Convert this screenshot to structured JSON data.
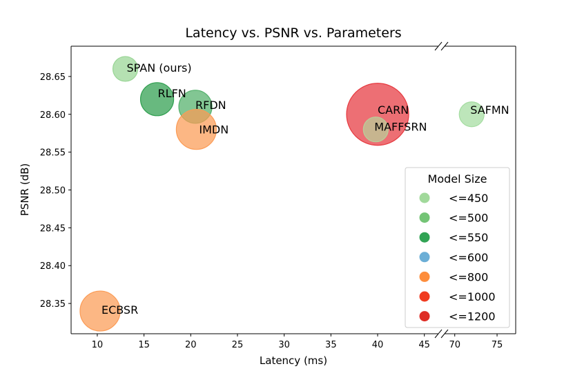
{
  "chart_data": {
    "type": "scatter",
    "title": "Latency vs. PSNR vs. Parameters",
    "xlabel": "Latency (ms)",
    "ylabel": "PSNR (dB)",
    "ylim": [
      28.31,
      28.69
    ],
    "x_left_range": [
      7.2,
      46.5
    ],
    "x_right_range": [
      68.8,
      77.2
    ],
    "x_left_ticks": [
      10,
      15,
      20,
      25,
      30,
      35,
      40,
      45
    ],
    "x_right_ticks": [
      70,
      75
    ],
    "y_ticks": [
      28.35,
      28.4,
      28.45,
      28.5,
      28.55,
      28.6,
      28.65
    ],
    "y_tick_labels": [
      "28.35",
      "28.40",
      "28.45",
      "28.50",
      "28.55",
      "28.60",
      "28.65"
    ],
    "points": [
      {
        "name": "SPAN (ours)",
        "latency": 13.0,
        "psnr": 28.66,
        "size_class": "<=450",
        "color": "#98d594",
        "label_dx": 2,
        "label_dy": -2
      },
      {
        "name": "RLFN",
        "latency": 16.4,
        "psnr": 28.62,
        "size_class": "<=550",
        "color": "#2e9e4e",
        "label_dx": 1,
        "label_dy": -9
      },
      {
        "name": "RFDN",
        "latency": 20.5,
        "psnr": 28.61,
        "size_class": "<=500",
        "color": "#52b06a",
        "label_dx": 0,
        "label_dy": -3
      },
      {
        "name": "IMDN",
        "latency": 20.6,
        "psnr": 28.58,
        "size_class": "<=800",
        "color": "#fb9b55",
        "label_dx": 4,
        "label_dy": 0
      },
      {
        "name": "CARN",
        "latency": 40.0,
        "psnr": 28.6,
        "size_class": "<=1200",
        "color": "#e6383e",
        "label_dx": 0,
        "label_dy": -7
      },
      {
        "name": "MAFFSRN",
        "latency": 39.8,
        "psnr": 28.58,
        "size_class": "<=450",
        "color": "#b8d09a",
        "label_dx": -2,
        "label_dy": -4
      },
      {
        "name": "SAFMN",
        "latency": 72.0,
        "psnr": 28.6,
        "size_class": "<=450",
        "color": "#a4dca0",
        "label_dx": -2,
        "label_dy": -7
      },
      {
        "name": "ECBSR",
        "latency": 10.3,
        "psnr": 28.34,
        "size_class": "<=800",
        "color": "#fb9b55",
        "label_dx": 2,
        "label_dy": -2
      }
    ],
    "point_radius_classes": {
      "<=450": 18,
      "<=500": 24,
      "<=550": 24,
      "<=600": 26,
      "<=800": 29,
      "<=1000": 38,
      "<=1200": 45
    },
    "legend": {
      "title": "Model Size",
      "position": "lower-right",
      "entries": [
        {
          "label": "<=450",
          "color": "#a1d99b"
        },
        {
          "label": "<=500",
          "color": "#74c476"
        },
        {
          "label": "<=550",
          "color": "#31a354"
        },
        {
          "label": "<=600",
          "color": "#6baed6"
        },
        {
          "label": "<=800",
          "color": "#fd8d3c"
        },
        {
          "label": "<=1000",
          "color": "#f03b20"
        },
        {
          "label": "<=1200",
          "color": "#de2d26"
        }
      ]
    }
  }
}
